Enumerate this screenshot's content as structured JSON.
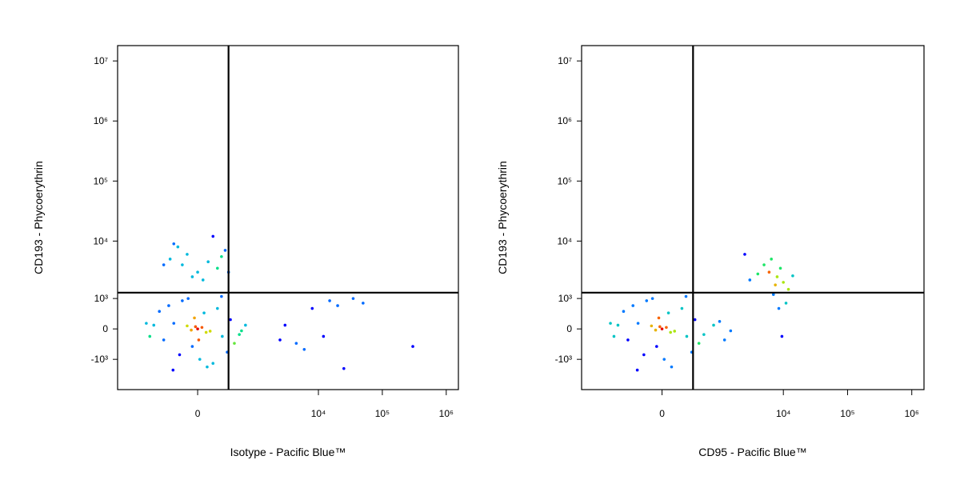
{
  "chart_data": [
    {
      "type": "scatter",
      "scale": "biexponential",
      "x_label": "Isotype - Pacific Blue™",
      "y_label": "CD193 - Phycoerythrin",
      "xlim": [
        -2300,
        1550000
      ],
      "ylim": [
        -3500,
        18000000
      ],
      "xticks": [
        0,
        {
          "value": 10000,
          "label": "10⁴"
        },
        {
          "value": 100000,
          "label": "10⁵"
        },
        {
          "value": 1000000,
          "label": "10⁶"
        }
      ],
      "yticks": [
        {
          "value": -1000,
          "label": "-10³"
        },
        0,
        {
          "value": 1000,
          "label": "10³"
        },
        {
          "value": 10000,
          "label": "10⁴"
        },
        {
          "value": 100000,
          "label": "10⁵"
        },
        {
          "value": 1000000,
          "label": "10⁶"
        },
        {
          "value": 10000000,
          "label": "10⁷"
        }
      ],
      "gates": {
        "x": 350,
        "y": 1300
      },
      "x": [
        0,
        -100,
        120,
        -250,
        260,
        -400,
        380,
        -600,
        550,
        -50,
        60,
        -180,
        200,
        -320,
        330,
        -700,
        700,
        150,
        -150,
        20,
        -30,
        450,
        -480,
        90,
        -90,
        600,
        -800,
        250,
        -260,
        10,
        40,
        -60,
        -20,
        80,
        -300,
        -100,
        100,
        200,
        -200,
        0,
        300,
        -400,
        150,
        -50,
        250,
        -250,
        50,
        -150,
        350,
        3000,
        4500,
        8000,
        12000,
        20000,
        35000,
        50000,
        300000,
        2500,
        6000,
        25000,
        15000
      ],
      "y": [
        0,
        80,
        -60,
        150,
        -200,
        -300,
        250,
        100,
        -150,
        -500,
        450,
        -800,
        600,
        700,
        -700,
        -200,
        100,
        -1200,
        900,
        -1000,
        300,
        -400,
        500,
        -1400,
        1000,
        -50,
        150,
        1100,
        -1600,
        -300,
        40,
        -30,
        60,
        -90,
        5000,
        6000,
        4500,
        3500,
        8000,
        3000,
        7000,
        4000,
        12000,
        2500,
        5500,
        9000,
        2200,
        4000,
        3000,
        100,
        -400,
        600,
        -200,
        700,
        1000,
        800,
        -500,
        -300,
        -600,
        -1500,
        900
      ]
    },
    {
      "type": "scatter",
      "scale": "biexponential",
      "x_label": "CD95 - Pacific Blue™",
      "y_label": "CD193 - Phycoerythrin",
      "xlim": [
        -2300,
        1550000
      ],
      "ylim": [
        -3500,
        18000000
      ],
      "xticks": [
        0,
        {
          "value": 10000,
          "label": "10⁴"
        },
        {
          "value": 100000,
          "label": "10⁵"
        },
        {
          "value": 1000000,
          "label": "10⁶"
        }
      ],
      "yticks": [
        {
          "value": -1000,
          "label": "-10³"
        },
        0,
        {
          "value": 1000,
          "label": "10³"
        },
        {
          "value": 10000,
          "label": "10⁴"
        },
        {
          "value": 100000,
          "label": "10⁵"
        },
        {
          "value": 1000000,
          "label": "10⁶"
        },
        {
          "value": 10000000,
          "label": "10⁷"
        }
      ],
      "gates": {
        "x": 350,
        "y": 1300
      },
      "x": [
        0,
        -100,
        120,
        -250,
        260,
        -400,
        380,
        -600,
        550,
        -50,
        60,
        -180,
        200,
        -320,
        330,
        -700,
        800,
        1200,
        -150,
        20,
        -30,
        450,
        -480,
        90,
        -90,
        1500,
        -800,
        250,
        -260,
        1000,
        40,
        -60,
        -20,
        80,
        8000,
        6000,
        10000,
        5000,
        12000,
        7000,
        9000,
        4000,
        11000,
        3000,
        8500,
        6500,
        14000,
        7500,
        2500,
        9500
      ],
      "y": [
        0,
        80,
        -60,
        150,
        -200,
        -300,
        250,
        100,
        -150,
        -500,
        450,
        -800,
        600,
        700,
        -700,
        -200,
        100,
        -300,
        900,
        -1000,
        300,
        -400,
        500,
        -1400,
        1000,
        -50,
        150,
        1100,
        -1600,
        200,
        40,
        -30,
        60,
        -90,
        2500,
        3000,
        2000,
        4000,
        1500,
        1200,
        3500,
        2800,
        800,
        2200,
        600,
        5000,
        2600,
        1800,
        6000,
        -200
      ]
    }
  ]
}
